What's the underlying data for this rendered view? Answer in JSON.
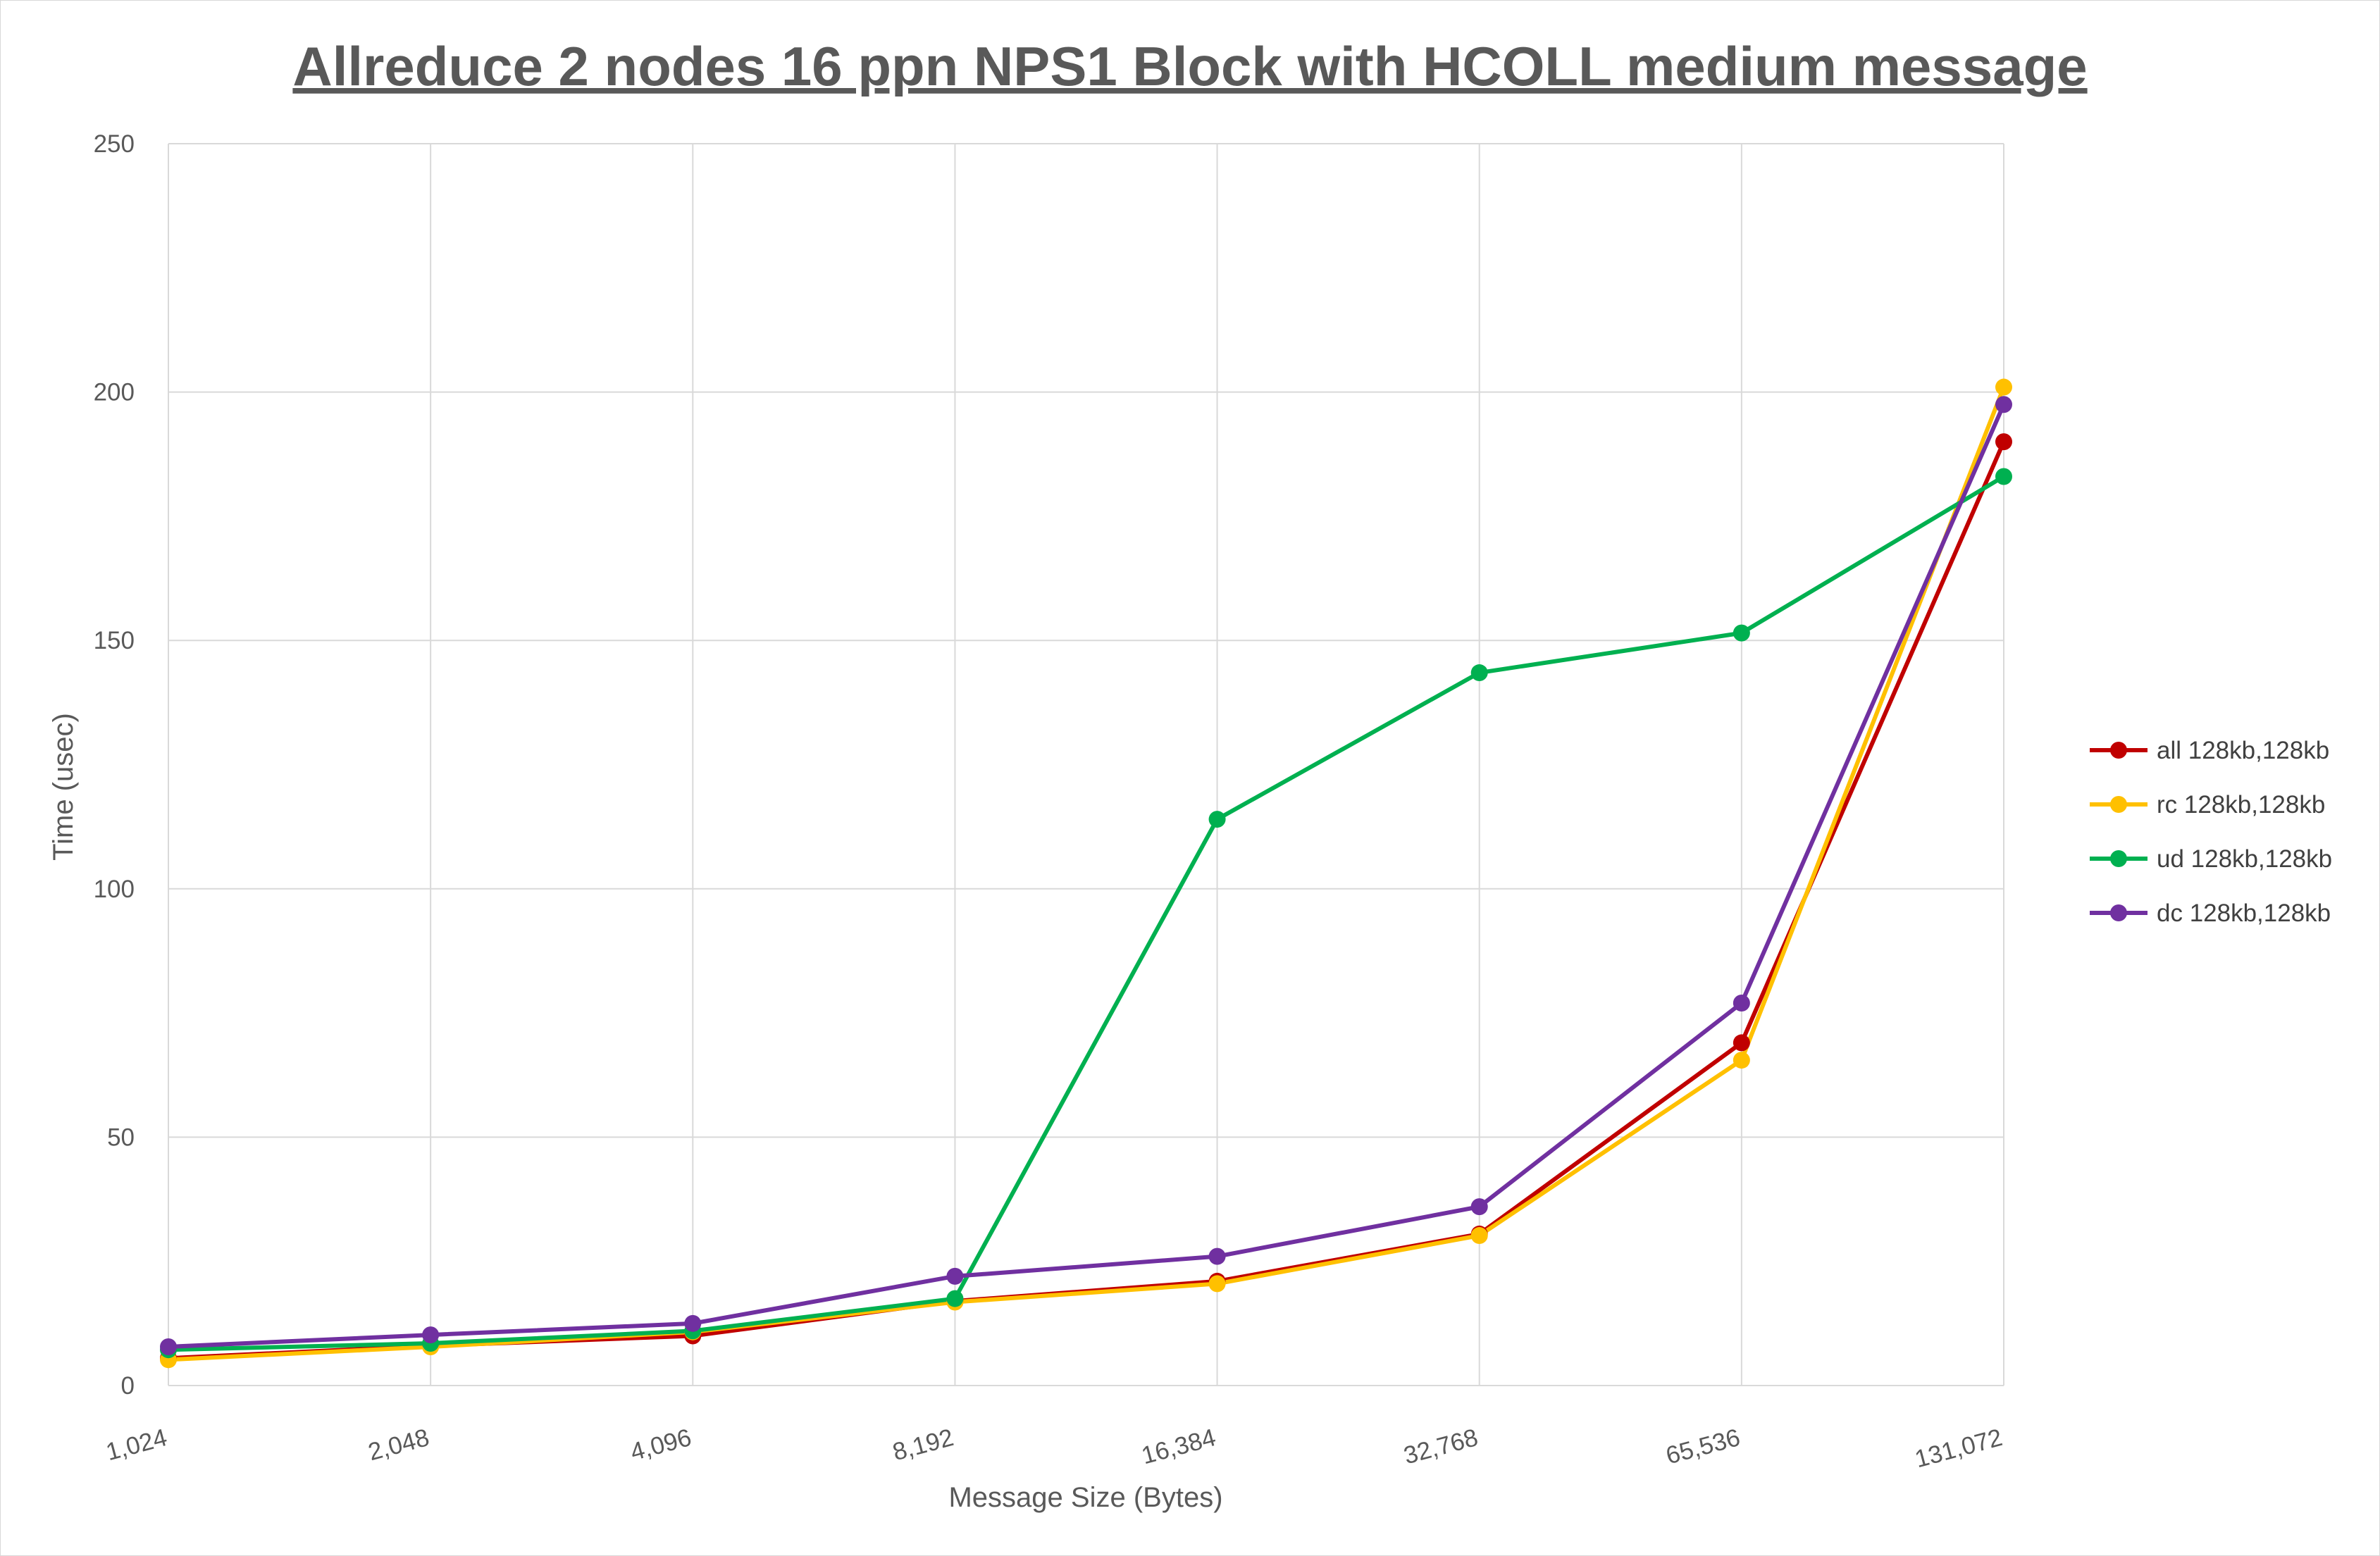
{
  "chart_data": {
    "type": "line",
    "title": "Allreduce 2 nodes 16 ppn NPS1 Block with HCOLL medium message",
    "xlabel": "Message Size (Bytes)",
    "ylabel": "Time (usec)",
    "categories": [
      "1,024",
      "2,048",
      "4,096",
      "8,192",
      "16,384",
      "32,768",
      "65,536",
      "131,072"
    ],
    "ylim": [
      0,
      250
    ],
    "yticks": [
      "0",
      "50",
      "100",
      "150",
      "200",
      "250"
    ],
    "ytick_values": [
      0,
      50,
      100,
      150,
      200,
      250
    ],
    "grid": true,
    "legend_position": "right",
    "series": [
      {
        "name": "all 128kb,128kb",
        "color": "#c00000",
        "values": [
          5.5,
          8.0,
          10.0,
          17.0,
          21.0,
          30.5,
          69.0,
          190.0
        ]
      },
      {
        "name": "rc 128kb,128kb",
        "color": "#ffc000",
        "values": [
          5.2,
          7.8,
          10.8,
          16.8,
          20.5,
          30.2,
          65.5,
          201.0
        ]
      },
      {
        "name": "ud 128kb,128kb",
        "color": "#00b050",
        "values": [
          7.2,
          8.5,
          11.0,
          17.5,
          114.0,
          143.5,
          151.5,
          183.0
        ]
      },
      {
        "name": "dc 128kb,128kb",
        "color": "#7030a0",
        "values": [
          7.8,
          10.2,
          12.5,
          22.0,
          26.0,
          36.0,
          77.0,
          197.5
        ]
      }
    ]
  }
}
